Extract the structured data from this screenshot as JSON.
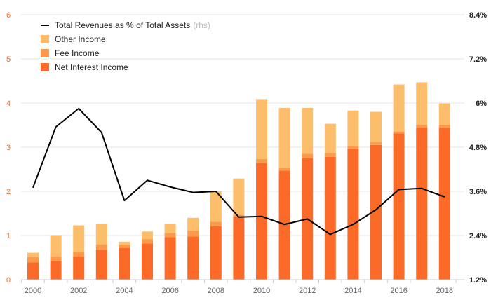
{
  "chart_data": {
    "type": "bar",
    "stacked": true,
    "title": "",
    "xlabel": "",
    "ylabel": "",
    "categories": [
      "2000",
      "2001",
      "2002",
      "2003",
      "2004",
      "2005",
      "2006",
      "2007",
      "2008",
      "2009",
      "2010",
      "2011",
      "2012",
      "2013",
      "2014",
      "2015",
      "2016",
      "2017",
      "2018"
    ],
    "x_tick_labels": [
      "2000",
      "2002",
      "2004",
      "2006",
      "2008",
      "2010",
      "2012",
      "2014",
      "2016",
      "2018"
    ],
    "ylim": [
      0,
      6
    ],
    "y_ticks": [
      "0",
      "1",
      "2",
      "3",
      "4",
      "5",
      "6"
    ],
    "y2lim": [
      1.2,
      8.4
    ],
    "y2_ticks": [
      "1.2%",
      "2.4%",
      "3.6%",
      "4.8%",
      "6%",
      "7.2%",
      "8.4%"
    ],
    "grid": true,
    "legend_position": "top-left",
    "series": [
      {
        "name": "Net Interest Income",
        "kind": "bar",
        "color": "#fc6a28",
        "values": [
          0.39,
          0.43,
          0.53,
          0.68,
          0.72,
          0.82,
          0.96,
          0.98,
          1.21,
          1.43,
          2.64,
          2.47,
          2.75,
          2.78,
          2.97,
          3.05,
          3.31,
          3.45,
          3.44
        ]
      },
      {
        "name": "Fee Income",
        "kind": "bar",
        "color": "#fc9a4c",
        "values": [
          0.13,
          0.1,
          0.1,
          0.12,
          0.07,
          0.1,
          0.1,
          0.13,
          0.1,
          0.04,
          0.09,
          0.06,
          0.1,
          0.09,
          0.06,
          0.06,
          0.05,
          0.05,
          0.07
        ]
      },
      {
        "name": "Other Income",
        "kind": "bar",
        "color": "#fdbe6b",
        "values": [
          0.09,
          0.48,
          0.6,
          0.46,
          0.07,
          0.17,
          0.2,
          0.29,
          0.69,
          0.82,
          1.36,
          1.36,
          1.04,
          0.66,
          0.8,
          0.69,
          1.06,
          0.97,
          0.48
        ]
      },
      {
        "name": "Total Revenues as % of Total Assets",
        "suffix": "(rhs)",
        "kind": "line",
        "axis": "right",
        "color": "#000000",
        "values": [
          3.7,
          5.35,
          5.85,
          5.2,
          3.35,
          3.9,
          3.72,
          3.57,
          3.6,
          2.9,
          2.92,
          2.7,
          2.85,
          2.43,
          2.7,
          3.1,
          3.65,
          3.68,
          3.45
        ]
      }
    ],
    "legend": [
      {
        "label": "Total Revenues as % of Total Assets",
        "suffix": "(rhs)",
        "symbol": "line",
        "color": "#000000"
      },
      {
        "label": "Other Income",
        "symbol": "box",
        "color": "#fdbe6b"
      },
      {
        "label": "Fee Income",
        "symbol": "box",
        "color": "#fc9a4c"
      },
      {
        "label": "Net Interest Income",
        "symbol": "box",
        "color": "#fc6a28"
      }
    ],
    "colors": {
      "left_axis_text": "#fc6a28",
      "right_axis_text": "#222222",
      "grid": "#e6e6e6",
      "x_text": "#666666"
    }
  }
}
